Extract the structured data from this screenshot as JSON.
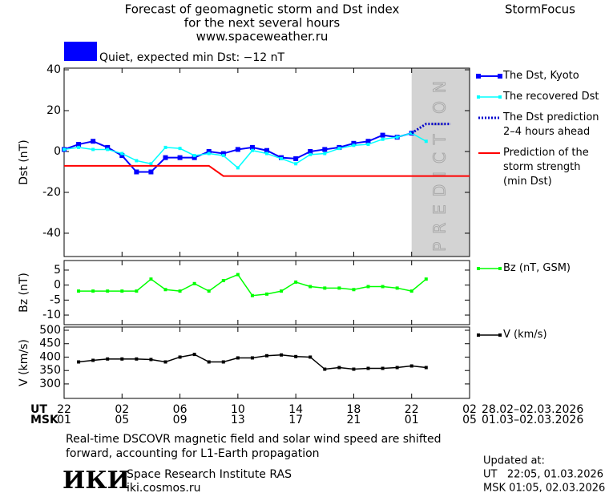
{
  "header": {
    "title": "Forecast of geomagnetic storm and Dst index",
    "subtitle": "for the next several hours",
    "url": "www.spaceweather.ru",
    "brand": "StormFocus",
    "status": "Quiet, expected min Dst: −12 nT",
    "status_color": "#0000ff"
  },
  "time_axis": {
    "xlim": [
      0,
      28
    ],
    "ut_label": "UT",
    "msk_label": "MSK",
    "ut_ticks": [
      {
        "value": 0,
        "label": "22"
      },
      {
        "value": 4,
        "label": "02"
      },
      {
        "value": 8,
        "label": "06"
      },
      {
        "value": 12,
        "label": "10"
      },
      {
        "value": 16,
        "label": "14"
      },
      {
        "value": 20,
        "label": "18"
      },
      {
        "value": 24,
        "label": "22"
      },
      {
        "value": 28,
        "label": "02"
      }
    ],
    "msk_ticks": [
      {
        "value": 0,
        "label": "01"
      },
      {
        "value": 4,
        "label": "05"
      },
      {
        "value": 8,
        "label": "09"
      },
      {
        "value": 12,
        "label": "13"
      },
      {
        "value": 16,
        "label": "17"
      },
      {
        "value": 20,
        "label": "21"
      },
      {
        "value": 24,
        "label": "01"
      },
      {
        "value": 28,
        "label": "05"
      }
    ],
    "ut_range": "28.02–02.03.2026",
    "msk_range": "01.03–02.03.2026"
  },
  "chart_data": [
    {
      "type": "line",
      "ylabel": "Dst (nT)",
      "ylim": [
        -51.4,
        40.8
      ],
      "yticks": [
        40,
        20,
        0,
        -20,
        -40
      ],
      "band": [
        24,
        28
      ],
      "band_label": "PREDICTION",
      "band_color": "#d3d3d3",
      "series": [
        {
          "name": "The Dst, Kyoto",
          "color": "#0000ff",
          "style": "square",
          "x": [
            0,
            1,
            2,
            3,
            4,
            5,
            6,
            7,
            8,
            9,
            10,
            11,
            12,
            13,
            14,
            15,
            16,
            17,
            18,
            19,
            20,
            21,
            22,
            23,
            24
          ],
          "values": [
            1,
            3.5,
            5,
            2,
            -2,
            -10,
            -10,
            -3,
            -3,
            -3,
            0,
            -1,
            1,
            2,
            0.5,
            -3,
            -3.5,
            0,
            1,
            2,
            4,
            5,
            8,
            7,
            9
          ]
        },
        {
          "name": "The recovered Dst",
          "color": "#00ffff",
          "style": "small-square",
          "x": [
            0,
            1,
            2,
            3,
            4,
            5,
            6,
            7,
            8,
            9,
            10,
            11,
            12,
            13,
            14,
            15,
            16,
            17,
            18,
            19,
            20,
            21,
            22,
            23,
            24,
            25
          ],
          "values": [
            1,
            2,
            1,
            1,
            -1,
            -4.5,
            -6,
            2,
            1.5,
            -2,
            -1,
            -2,
            -8,
            0.5,
            -1,
            -3.5,
            -6,
            -1.5,
            -1,
            1.5,
            3,
            3.5,
            6,
            7,
            9,
            5
          ]
        },
        {
          "name": "The Dst prediction\n2–4 hours ahead",
          "color": "#0000cc",
          "style": "dotted",
          "x": [
            24,
            25,
            26.7
          ],
          "values": [
            9,
            13.5,
            13.5
          ]
        },
        {
          "name": "Prediction of the\nstorm strength\n(min Dst)",
          "color": "#ff0000",
          "style": "line",
          "x": [
            0,
            10,
            11,
            28
          ],
          "values": [
            -7,
            -7,
            -12,
            -12
          ]
        }
      ]
    },
    {
      "type": "line",
      "ylabel": "Bz (nT)",
      "ylim": [
        -13.2,
        8.2
      ],
      "yticks": [
        5,
        0,
        -5,
        -10
      ],
      "series": [
        {
          "name": "Bz (nT, GSM)",
          "color": "#00ff00",
          "style": "small-square",
          "x": [
            1,
            2,
            3,
            4,
            5,
            6,
            7,
            8,
            9,
            10,
            11,
            12,
            13,
            14,
            15,
            16,
            17,
            18,
            19,
            20,
            21,
            22,
            23,
            24,
            25
          ],
          "values": [
            -2,
            -2,
            -2,
            -2,
            -2,
            2,
            -1.5,
            -2,
            0.5,
            -2,
            1.5,
            3.5,
            -3.5,
            -3,
            -2,
            1,
            -0.5,
            -1,
            -1,
            -1.5,
            -0.5,
            -0.5,
            -1,
            -2,
            2
          ]
        }
      ]
    },
    {
      "type": "line",
      "ylabel": "V (km/s)",
      "ylim": [
        246,
        512
      ],
      "yticks": [
        500,
        450,
        400,
        350,
        300
      ],
      "series": [
        {
          "name": "V (km/s)",
          "color": "#000000",
          "style": "small-square",
          "x": [
            1,
            2,
            3,
            4,
            5,
            6,
            7,
            8,
            9,
            10,
            11,
            12,
            13,
            14,
            15,
            16,
            17,
            18,
            19,
            20,
            21,
            22,
            23,
            24,
            25
          ],
          "values": [
            382,
            388,
            393,
            393,
            393,
            391,
            382,
            400,
            410,
            382,
            382,
            397,
            397,
            405,
            408,
            402,
            400,
            355,
            361,
            355,
            358,
            358,
            361,
            367,
            361
          ]
        }
      ]
    }
  ],
  "footer": {
    "note": [
      "Real-time DSCOVR magnetic field and solar wind speed are shifted",
      "forward, accounting for L1-Earth propagation"
    ],
    "logo": "ИКИ",
    "institute": "Space Research Institute RAS",
    "site": "iki.cosmos.ru",
    "updated": "Updated at:",
    "updated_ut": "UT   22:05, 01.03.2026",
    "updated_msk": "MSK 01:05, 02.03.2026"
  }
}
